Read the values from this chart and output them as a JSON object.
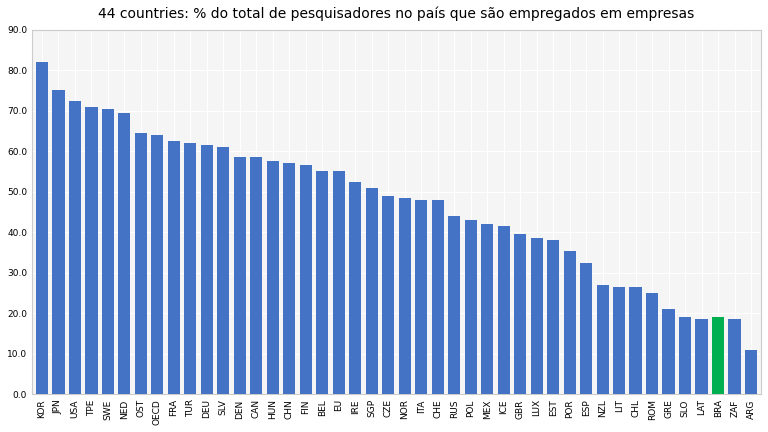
{
  "title": "44 countries: % do total de pesquisadores no país que são empregados em empresas",
  "categories": [
    "KOR",
    "JPN",
    "USA",
    "TPE",
    "SWE",
    "NED",
    "OST",
    "OECD",
    "FRA",
    "TUR",
    "DEU",
    "SLV",
    "DEN",
    "CAN",
    "HUN",
    "CHN",
    "FIN",
    "BEL",
    "EU",
    "IRE",
    "SGP",
    "CZE",
    "NOR",
    "ITA",
    "CHE",
    "RUS",
    "POL",
    "MEX",
    "ICE",
    "GBR",
    "LUX",
    "EST",
    "POR",
    "ESP",
    "NZL",
    "LIT",
    "CHL",
    "ROM",
    "GRE",
    "SLO",
    "LAT",
    "BRA",
    "ZAF",
    "ARG"
  ],
  "values": [
    82.0,
    75.0,
    72.5,
    71.0,
    70.5,
    69.5,
    64.5,
    64.0,
    62.5,
    62.0,
    61.5,
    61.0,
    58.5,
    58.5,
    57.5,
    57.0,
    56.5,
    55.0,
    55.0,
    52.5,
    51.0,
    49.0,
    48.5,
    48.0,
    48.0,
    44.0,
    43.0,
    42.0,
    41.5,
    39.5,
    38.5,
    38.0,
    35.5,
    32.5,
    27.0,
    26.5,
    26.5,
    25.0,
    21.0,
    19.0,
    18.5,
    19.0,
    18.5,
    11.0
  ],
  "bar_color_default": "#4472c4",
  "bar_color_highlight": "#00b050",
  "highlight_index": 41,
  "ylim": [
    0,
    90
  ],
  "yticks": [
    0.0,
    10.0,
    20.0,
    30.0,
    40.0,
    50.0,
    60.0,
    70.0,
    80.0,
    90.0
  ],
  "ytick_labels": [
    "0.0",
    "10.0",
    "20.0",
    "30.0",
    "40.0",
    "50.0",
    "60.0",
    "70.0",
    "80.0",
    "90.0"
  ],
  "background_color": "#ffffff",
  "plot_bg_color": "#f5f5f5",
  "grid_color": "#ffffff",
  "title_fontsize": 10,
  "tick_fontsize": 6.5,
  "border_color": "#cccccc"
}
